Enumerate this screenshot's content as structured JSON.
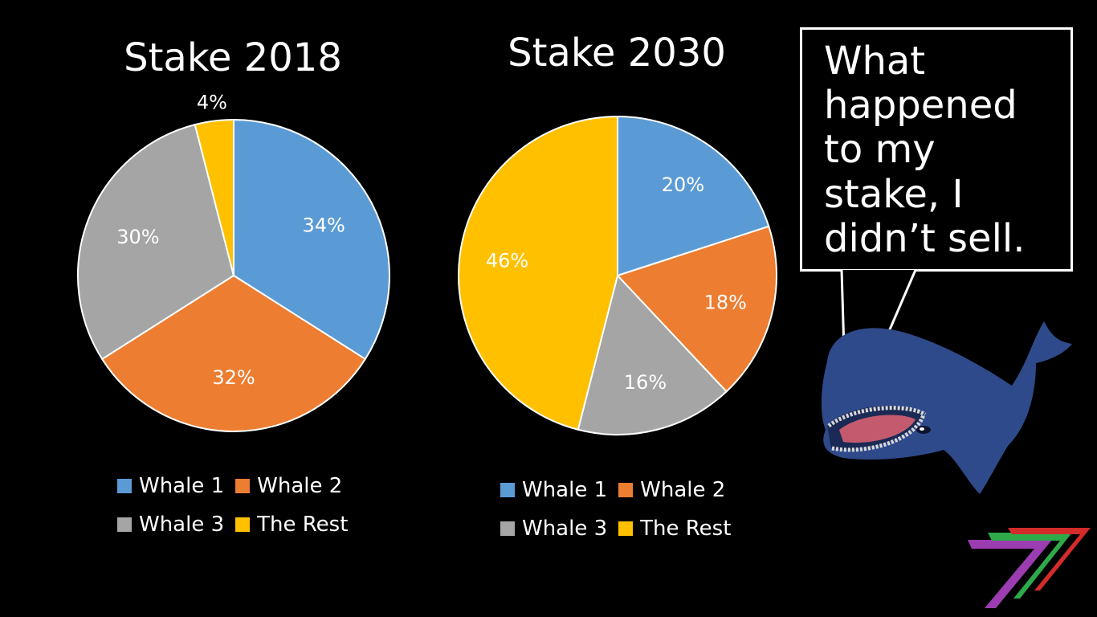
{
  "colors": {
    "whale1": "#5B9BD5",
    "whale2": "#ED7D31",
    "whale3": "#A5A5A5",
    "rest": "#FFC000",
    "background": "#000000",
    "text": "#FFFFFF"
  },
  "chart_data": [
    {
      "type": "pie",
      "title": "Stake 2018",
      "categories": [
        "Whale 1",
        "Whale 2",
        "Whale 3",
        "The Rest"
      ],
      "values": [
        34,
        32,
        30,
        4
      ],
      "labels": [
        "34%",
        "32%",
        "30%",
        "4%"
      ],
      "legend_position": "bottom"
    },
    {
      "type": "pie",
      "title": "Stake 2030",
      "categories": [
        "Whale 1",
        "Whale 2",
        "Whale 3",
        "The Rest"
      ],
      "values": [
        20,
        18,
        16,
        46
      ],
      "labels": [
        "20%",
        "18%",
        "16%",
        "46%"
      ],
      "legend_position": "bottom"
    }
  ],
  "speech_bubble": {
    "text": "What happened to my stake, I didn’t sell."
  },
  "icons": [
    "whale-icon",
    "logo-icon"
  ]
}
